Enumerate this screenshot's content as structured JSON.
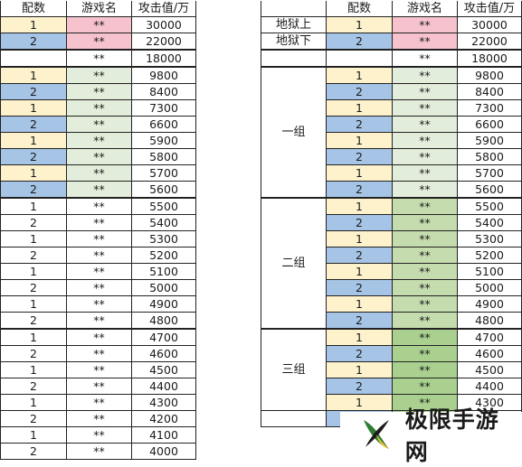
{
  "colors": {
    "pair_yellow": "#fdf2cc",
    "pair_blue": "#a6c4e6",
    "name_pink": "#f6c2cd",
    "name_pale_green": "#e3eddb",
    "name_green": "#c4dcae",
    "name_deep_green": "#a9d08e"
  },
  "left_table": {
    "headers": [
      "配数",
      "游戏名",
      "攻击值/万"
    ],
    "rows": [
      {
        "pair": "1",
        "name": "**",
        "value": "30000"
      },
      {
        "pair": "2",
        "name": "**",
        "value": "22000"
      },
      {
        "pair": "",
        "name": "**",
        "value": "18000"
      },
      {
        "pair": "1",
        "name": "**",
        "value": "9800"
      },
      {
        "pair": "2",
        "name": "**",
        "value": "8400"
      },
      {
        "pair": "1",
        "name": "**",
        "value": "7300"
      },
      {
        "pair": "2",
        "name": "**",
        "value": "6600"
      },
      {
        "pair": "1",
        "name": "**",
        "value": "5900"
      },
      {
        "pair": "2",
        "name": "**",
        "value": "5800"
      },
      {
        "pair": "1",
        "name": "**",
        "value": "5700"
      },
      {
        "pair": "2",
        "name": "**",
        "value": "5600"
      },
      {
        "pair": "1",
        "name": "**",
        "value": "5500"
      },
      {
        "pair": "2",
        "name": "**",
        "value": "5400"
      },
      {
        "pair": "1",
        "name": "**",
        "value": "5300"
      },
      {
        "pair": "2",
        "name": "**",
        "value": "5200"
      },
      {
        "pair": "1",
        "name": "**",
        "value": "5100"
      },
      {
        "pair": "2",
        "name": "**",
        "value": "5000"
      },
      {
        "pair": "1",
        "name": "**",
        "value": "4900"
      },
      {
        "pair": "2",
        "name": "**",
        "value": "4800"
      },
      {
        "pair": "1",
        "name": "**",
        "value": "4700"
      },
      {
        "pair": "2",
        "name": "**",
        "value": "4600"
      },
      {
        "pair": "1",
        "name": "**",
        "value": "4500"
      },
      {
        "pair": "2",
        "name": "**",
        "value": "4400"
      },
      {
        "pair": "1",
        "name": "**",
        "value": "4300"
      },
      {
        "pair": "2",
        "name": "**",
        "value": "4200"
      },
      {
        "pair": "1",
        "name": "**",
        "value": "4100"
      },
      {
        "pair": "2",
        "name": "**",
        "value": "4000"
      }
    ]
  },
  "right_table": {
    "headers": [
      "",
      "配数",
      "游戏名",
      "攻击值/万"
    ],
    "group_labels": {
      "hell_upper": "地狱上",
      "hell_lower": "地狱下",
      "group1": "一组",
      "group2": "二组",
      "group3": "三组"
    },
    "rows": [
      {
        "pair": "1",
        "name": "**",
        "value": "30000"
      },
      {
        "pair": "2",
        "name": "**",
        "value": "22000"
      },
      {
        "pair": "",
        "name": "**",
        "value": "18000"
      },
      {
        "pair": "1",
        "name": "**",
        "value": "9800"
      },
      {
        "pair": "2",
        "name": "**",
        "value": "8400"
      },
      {
        "pair": "1",
        "name": "**",
        "value": "7300"
      },
      {
        "pair": "2",
        "name": "**",
        "value": "6600"
      },
      {
        "pair": "1",
        "name": "**",
        "value": "5900"
      },
      {
        "pair": "2",
        "name": "**",
        "value": "5800"
      },
      {
        "pair": "1",
        "name": "**",
        "value": "5700"
      },
      {
        "pair": "2",
        "name": "**",
        "value": "5600"
      },
      {
        "pair": "1",
        "name": "**",
        "value": "5500"
      },
      {
        "pair": "2",
        "name": "**",
        "value": "5400"
      },
      {
        "pair": "1",
        "name": "**",
        "value": "5300"
      },
      {
        "pair": "2",
        "name": "**",
        "value": "5200"
      },
      {
        "pair": "1",
        "name": "**",
        "value": "5100"
      },
      {
        "pair": "2",
        "name": "**",
        "value": "5000"
      },
      {
        "pair": "1",
        "name": "**",
        "value": "4900"
      },
      {
        "pair": "2",
        "name": "**",
        "value": "4800"
      },
      {
        "pair": "1",
        "name": "**",
        "value": "4700"
      },
      {
        "pair": "2",
        "name": "**",
        "value": "4600"
      },
      {
        "pair": "1",
        "name": "**",
        "value": "4500"
      },
      {
        "pair": "2",
        "name": "**",
        "value": "4400"
      },
      {
        "pair": "1",
        "name": "**",
        "value": "4300"
      }
    ]
  },
  "watermark": {
    "text": "极限手游网",
    "logo_icon": "x-leaf-logo-icon"
  }
}
